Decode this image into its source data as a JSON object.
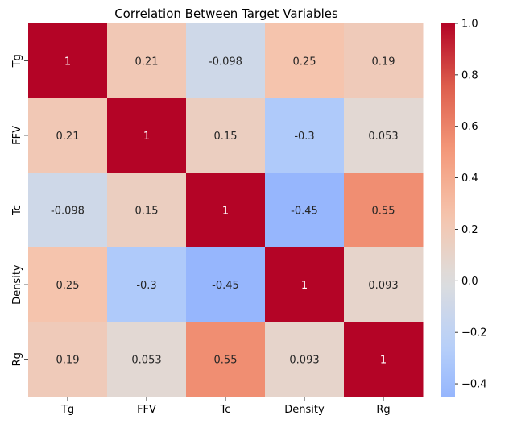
{
  "chart_data": {
    "type": "heatmap",
    "title": "Correlation Between Target Variables",
    "x_categories": [
      "Tg",
      "FFV",
      "Tc",
      "Density",
      "Rg"
    ],
    "y_categories": [
      "Tg",
      "FFV",
      "Tc",
      "Density",
      "Rg"
    ],
    "values": [
      [
        1,
        0.21,
        -0.098,
        0.25,
        0.19
      ],
      [
        0.21,
        1,
        0.15,
        -0.3,
        0.053
      ],
      [
        -0.098,
        0.15,
        1,
        -0.45,
        0.55
      ],
      [
        0.25,
        -0.3,
        -0.45,
        1,
        0.093
      ],
      [
        0.19,
        0.053,
        0.55,
        0.093,
        1
      ]
    ],
    "annotations": [
      [
        "1",
        "0.21",
        "-0.098",
        "0.25",
        "0.19"
      ],
      [
        "0.21",
        "1",
        "0.15",
        "-0.3",
        "0.053"
      ],
      [
        "-0.098",
        "0.15",
        "1",
        "-0.45",
        "0.55"
      ],
      [
        "0.25",
        "-0.3",
        "-0.45",
        "1",
        "0.093"
      ],
      [
        "0.19",
        "0.053",
        "0.55",
        "0.093",
        "1"
      ]
    ],
    "colormap": "coolwarm",
    "center": 0,
    "vmin": -0.45,
    "vmax": 1.0,
    "colorbar": {
      "ticks": [
        1.0,
        0.8,
        0.6,
        0.4,
        0.2,
        0.0,
        -0.2,
        -0.4
      ],
      "tick_labels": [
        "1.0",
        "0.8",
        "0.6",
        "0.4",
        "0.2",
        "0.0",
        "−0.2",
        "−0.4"
      ],
      "placement": "right"
    },
    "grid": false
  }
}
